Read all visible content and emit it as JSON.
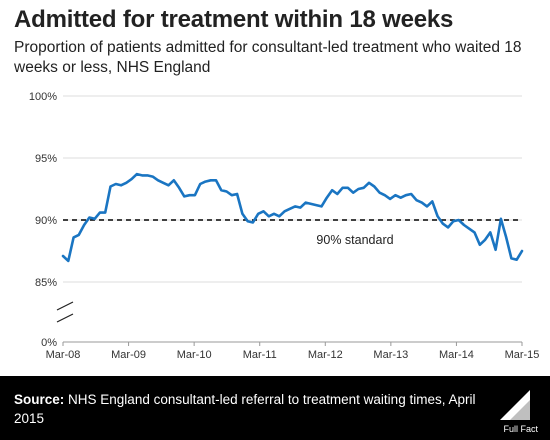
{
  "title": "Admitted for treatment within 18 weeks",
  "subtitle": "Proportion of patients admitted for consultant-led treatment who waited 18 weeks or less, NHS England",
  "footer": {
    "source_label": "Source:",
    "source_text": "NHS England consultant-led referral to treatment waiting times, April 2015",
    "logo_text": "Full Fact"
  },
  "colors": {
    "line": "#1a75c2",
    "standard": "#000000",
    "grid": "#dddddd",
    "footer_bg": "#000000"
  },
  "chart_data": {
    "type": "line",
    "title": "Admitted for treatment within 18 weeks",
    "x_tick_labels": [
      "Mar-08",
      "Mar-09",
      "Mar-10",
      "Mar-11",
      "Mar-12",
      "Mar-13",
      "Mar-14",
      "Mar-15"
    ],
    "y_tick_labels": [
      "100%",
      "95%",
      "90%",
      "85%",
      "0%"
    ],
    "y_ticks": [
      100,
      95,
      90,
      85
    ],
    "ylim": [
      85,
      100
    ],
    "y_axis_break": true,
    "grid": true,
    "x_start": "Mar-08",
    "x_end": "Mar-15",
    "annotation": {
      "text": "90% standard",
      "y": 90
    },
    "series": [
      {
        "values": [
          87.1,
          86.7,
          88.6,
          88.8,
          89.6,
          90.2,
          90.1,
          90.6,
          90.6,
          92.7,
          92.9,
          92.8,
          93.0,
          93.3,
          93.7,
          93.6,
          93.6,
          93.5,
          93.2,
          93.0,
          92.8,
          93.2,
          92.6,
          91.9,
          92.0,
          92.0,
          92.9,
          93.1,
          93.2,
          93.2,
          92.4,
          92.3,
          92.0,
          92.1,
          90.5,
          89.9,
          89.8,
          90.5,
          90.7,
          90.3,
          90.5,
          90.3,
          90.7,
          90.9,
          91.1,
          91.0,
          91.4,
          91.3,
          91.2,
          91.1,
          91.8,
          92.4,
          92.1,
          92.6,
          92.6,
          92.2,
          92.5,
          92.6,
          93.0,
          92.7,
          92.2,
          92.0,
          91.7,
          92.0,
          91.8,
          92.0,
          92.1,
          91.6,
          91.4,
          91.1,
          91.5,
          90.3,
          89.7,
          89.4,
          89.9,
          90.0,
          89.6,
          89.3,
          89.0,
          88.0,
          88.4,
          89.0,
          87.6,
          90.1,
          88.6,
          86.9,
          86.8,
          87.5
        ]
      }
    ]
  }
}
